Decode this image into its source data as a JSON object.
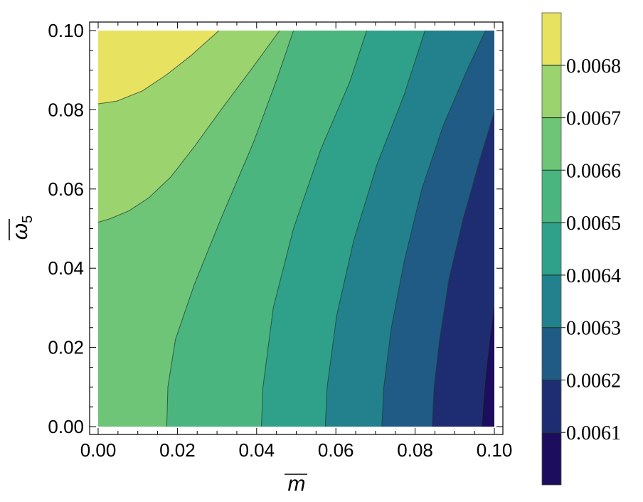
{
  "chart_data": {
    "type": "contour",
    "xlabel": "m",
    "ylabel": "ω",
    "ylabel_subscript": "5",
    "xlim": [
      0.0,
      0.1
    ],
    "ylim": [
      0.0,
      0.1
    ],
    "x_ticks": [
      {
        "value": 0.0,
        "label": "0.00"
      },
      {
        "value": 0.02,
        "label": "0.02"
      },
      {
        "value": 0.04,
        "label": "0.04"
      },
      {
        "value": 0.06,
        "label": "0.06"
      },
      {
        "value": 0.08,
        "label": "0.08"
      },
      {
        "value": 0.1,
        "label": "0.10"
      }
    ],
    "y_ticks": [
      {
        "value": 0.0,
        "label": "0.00"
      },
      {
        "value": 0.02,
        "label": "0.02"
      },
      {
        "value": 0.04,
        "label": "0.04"
      },
      {
        "value": 0.06,
        "label": "0.06"
      },
      {
        "value": 0.08,
        "label": "0.08"
      },
      {
        "value": 0.1,
        "label": "0.10"
      }
    ],
    "grid": false,
    "colorbar": {
      "placement": "right",
      "range": [
        0.006,
        0.0069
      ],
      "levels": [
        {
          "value": 0.0061,
          "label": "0.0061"
        },
        {
          "value": 0.0062,
          "label": "0.0062"
        },
        {
          "value": 0.0063,
          "label": "0.0063"
        },
        {
          "value": 0.0064,
          "label": "0.0064"
        },
        {
          "value": 0.0065,
          "label": "0.0065"
        },
        {
          "value": 0.0066,
          "label": "0.0066"
        },
        {
          "value": 0.0067,
          "label": "0.0067"
        },
        {
          "value": 0.0068,
          "label": "0.0068"
        }
      ]
    },
    "band_colors": [
      "#1c0d5e",
      "#1e2d72",
      "#1f5b85",
      "#22818c",
      "#2fa18a",
      "#4ab57e",
      "#6ec577",
      "#9bd46f",
      "#e8e261"
    ],
    "contours": [
      {
        "level": 0.0061,
        "points": [
          [
            0.0968,
            0.0
          ],
          [
            0.0972,
            0.006
          ],
          [
            0.0978,
            0.013
          ],
          [
            0.0988,
            0.022
          ],
          [
            0.1,
            0.031
          ]
        ]
      },
      {
        "level": 0.0062,
        "points": [
          [
            0.0843,
            0.0
          ],
          [
            0.0848,
            0.01
          ],
          [
            0.0862,
            0.022
          ],
          [
            0.0885,
            0.037
          ],
          [
            0.092,
            0.052
          ],
          [
            0.0965,
            0.068
          ],
          [
            0.1,
            0.0795
          ]
        ]
      },
      {
        "level": 0.0063,
        "points": [
          [
            0.0716,
            0.0
          ],
          [
            0.0721,
            0.01
          ],
          [
            0.074,
            0.025
          ],
          [
            0.0773,
            0.042
          ],
          [
            0.0817,
            0.06
          ],
          [
            0.0871,
            0.076
          ],
          [
            0.0931,
            0.09
          ],
          [
            0.0978,
            0.1
          ]
        ]
      },
      {
        "level": 0.0064,
        "points": [
          [
            0.0573,
            0.0
          ],
          [
            0.0578,
            0.01
          ],
          [
            0.0602,
            0.028
          ],
          [
            0.0645,
            0.047
          ],
          [
            0.0703,
            0.066
          ],
          [
            0.0773,
            0.084
          ],
          [
            0.0825,
            0.1
          ]
        ]
      },
      {
        "level": 0.0065,
        "points": [
          [
            0.0412,
            0.0
          ],
          [
            0.0416,
            0.01
          ],
          [
            0.0442,
            0.03
          ],
          [
            0.0493,
            0.05
          ],
          [
            0.0562,
            0.07
          ],
          [
            0.0635,
            0.087
          ],
          [
            0.0678,
            0.1
          ]
        ]
      },
      {
        "level": 0.0066,
        "points": [
          [
            0.0173,
            0.0
          ],
          [
            0.0176,
            0.01
          ],
          [
            0.0195,
            0.022
          ],
          [
            0.0243,
            0.036
          ],
          [
            0.0312,
            0.053
          ],
          [
            0.0393,
            0.072
          ],
          [
            0.0452,
            0.088
          ],
          [
            0.0493,
            0.1
          ]
        ]
      },
      {
        "level": 0.0067,
        "points": [
          [
            0.0,
            0.0516
          ],
          [
            0.003,
            0.0525
          ],
          [
            0.0078,
            0.0545
          ],
          [
            0.0128,
            0.0578
          ],
          [
            0.0183,
            0.063
          ],
          [
            0.0245,
            0.071
          ],
          [
            0.031,
            0.08
          ],
          [
            0.0385,
            0.09
          ],
          [
            0.0458,
            0.1
          ]
        ]
      },
      {
        "level": 0.0068,
        "points": [
          [
            0.0,
            0.0815
          ],
          [
            0.0048,
            0.0822
          ],
          [
            0.0112,
            0.0848
          ],
          [
            0.0172,
            0.0888
          ],
          [
            0.0232,
            0.0935
          ],
          [
            0.0305,
            0.1
          ]
        ]
      }
    ]
  }
}
